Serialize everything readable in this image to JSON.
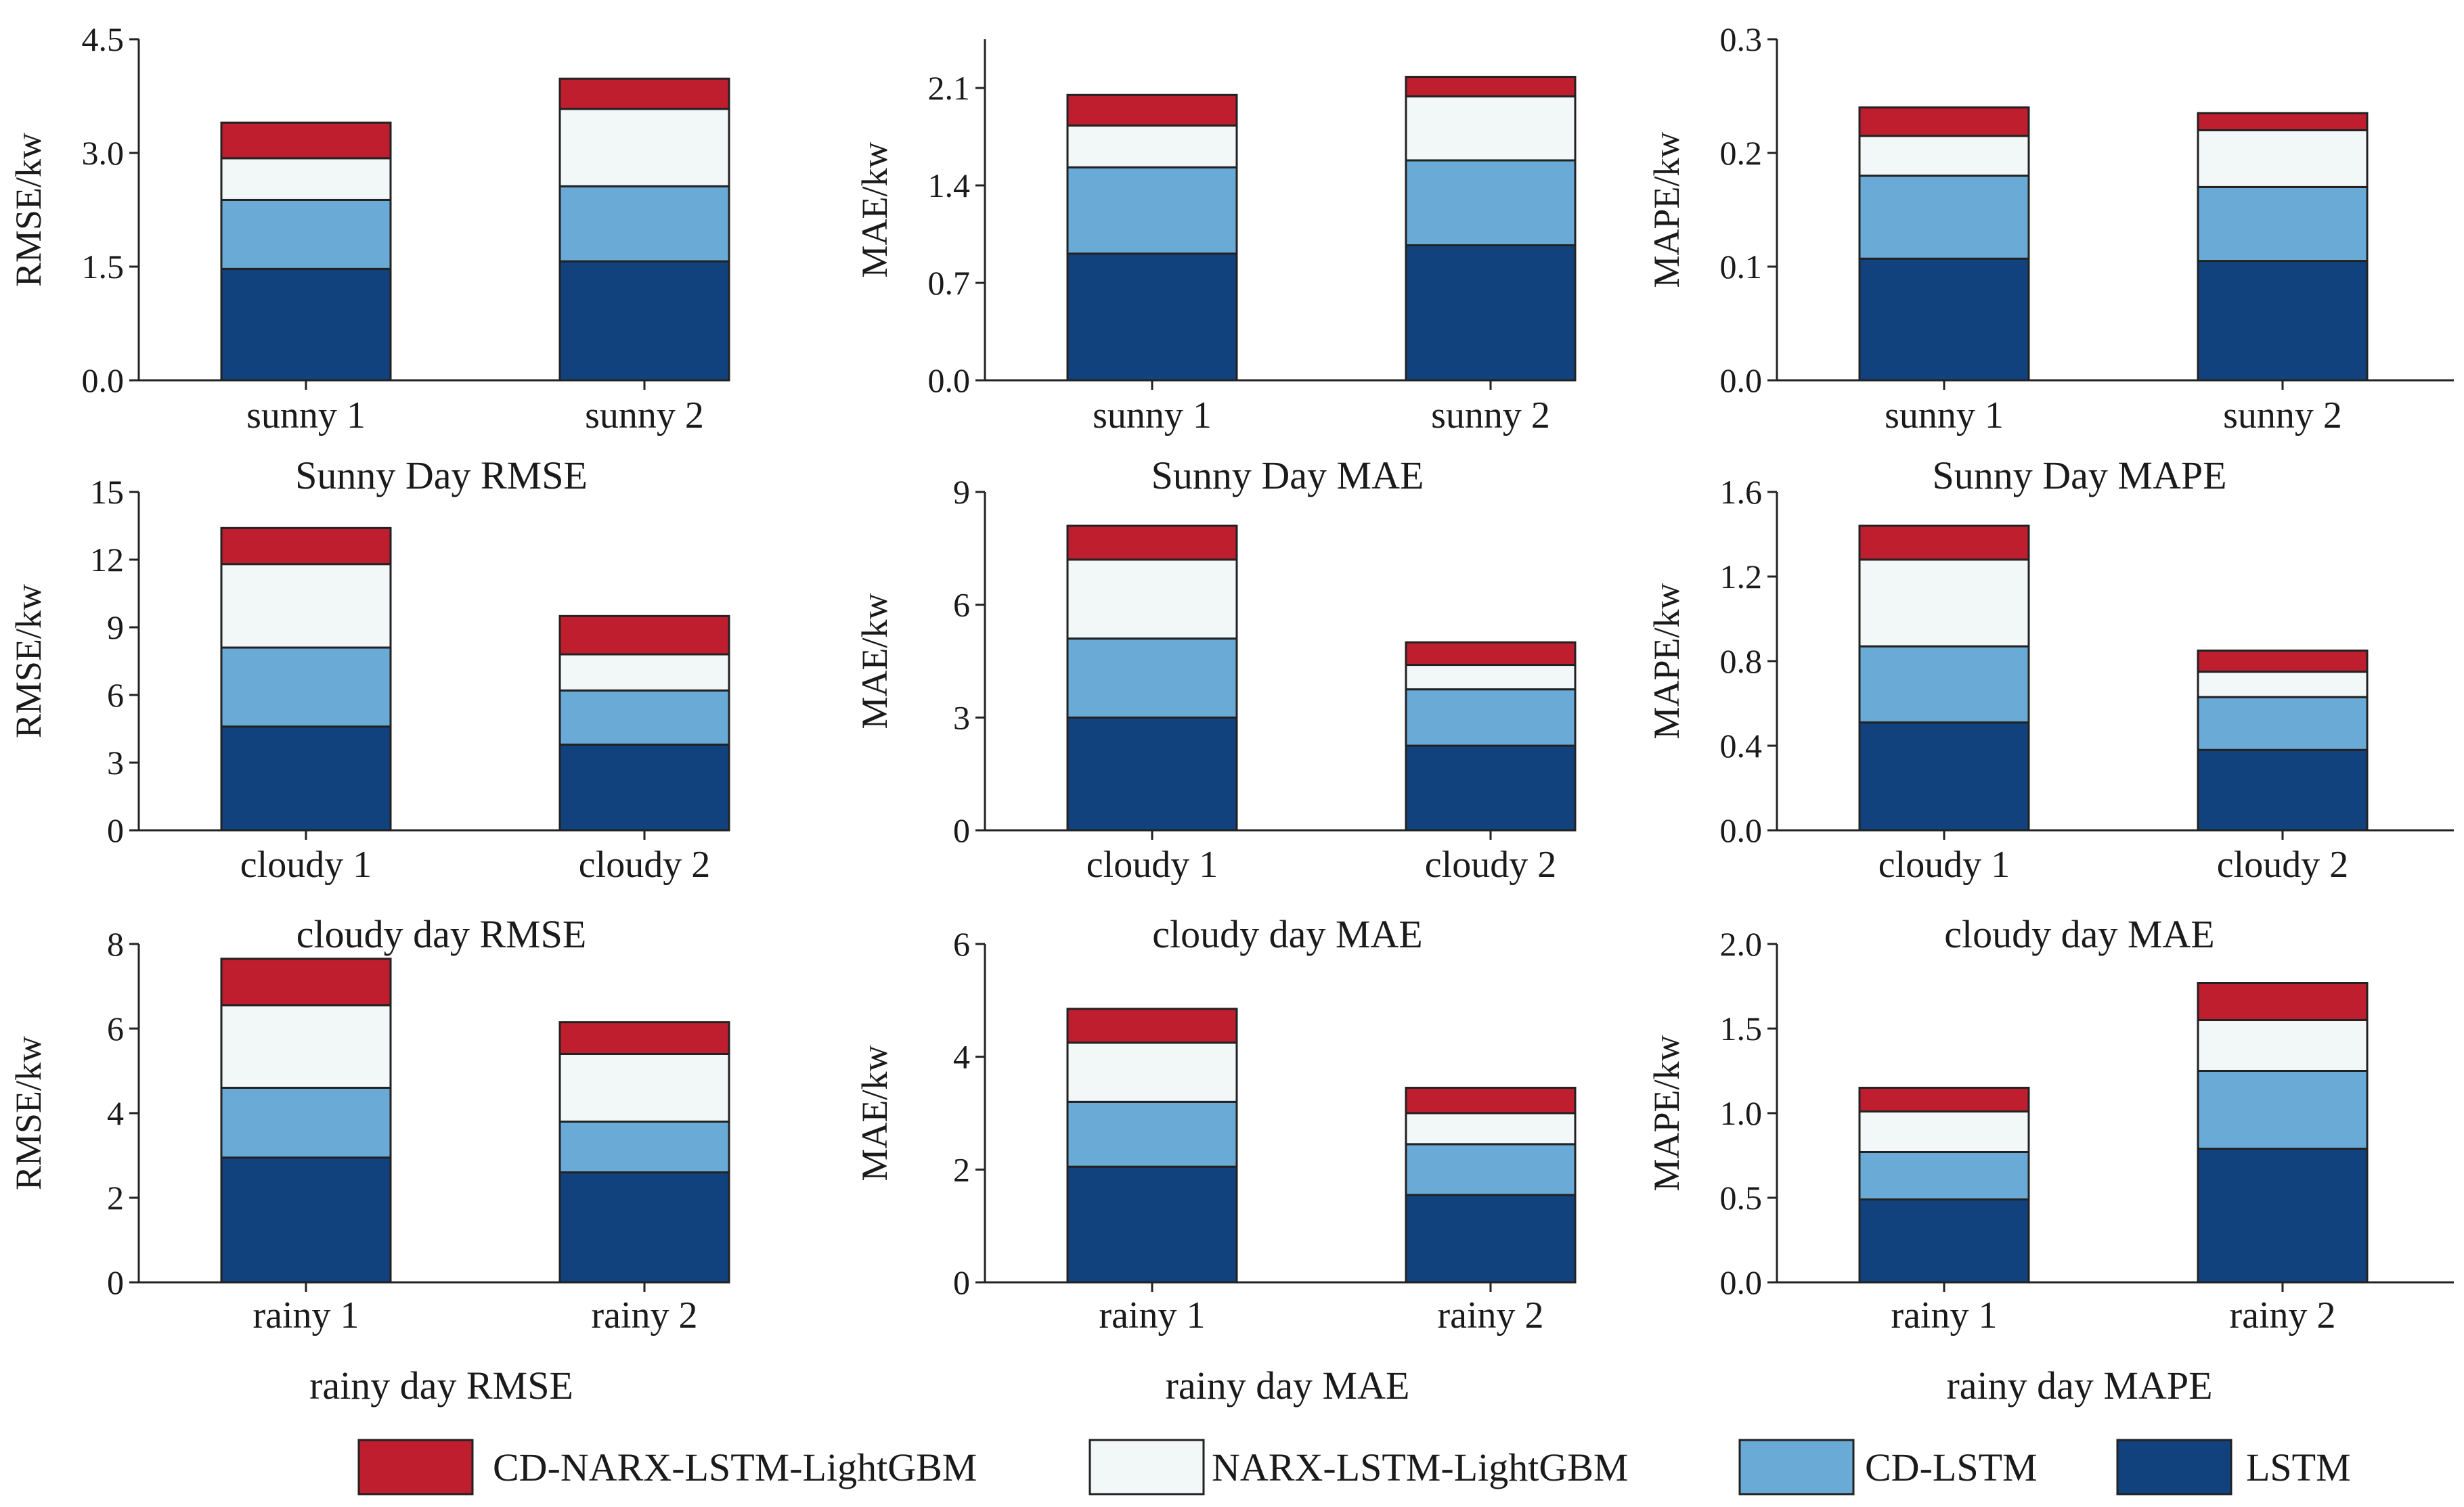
{
  "colors": {
    "CD-NARX-LSTM-LightGBM": "#bf1e2e",
    "NARX-LSTM-LightGBM": "#f2f7f7",
    "CD-LSTM": "#6aaad6",
    "LSTM": "#12427e"
  },
  "legend": [
    "CD-NARX-LSTM-LightGBM",
    "NARX-LSTM-LightGBM",
    "CD-LSTM",
    "LSTM"
  ],
  "chart_data": [
    {
      "type": "bar",
      "stacked": true,
      "title": "Sunny Day RMSE",
      "ylabel": "RMSE/kw",
      "ylim": [
        0,
        4.5
      ],
      "yticks": [
        "0.0",
        "1.5",
        "3.0",
        "4.5"
      ],
      "categories": [
        "sunny 1",
        "sunny 2"
      ],
      "series": [
        {
          "name": "LSTM",
          "values": [
            1.47,
            1.57
          ]
        },
        {
          "name": "CD-LSTM",
          "values": [
            0.91,
            0.99
          ]
        },
        {
          "name": "NARX-LSTM-LightGBM",
          "values": [
            0.55,
            1.02
          ]
        },
        {
          "name": "CD-NARX-LSTM-LightGBM",
          "values": [
            0.47,
            0.4
          ]
        }
      ]
    },
    {
      "type": "bar",
      "stacked": true,
      "title": "Sunny Day MAE",
      "ylabel": "MAE/kw",
      "ylim": [
        0,
        2.45
      ],
      "yticks": [
        "0.0",
        "0.7",
        "1.4",
        "2.1"
      ],
      "categories": [
        "sunny 1",
        "sunny 2"
      ],
      "series": [
        {
          "name": "LSTM",
          "values": [
            0.91,
            0.97
          ]
        },
        {
          "name": "CD-LSTM",
          "values": [
            0.62,
            0.61
          ]
        },
        {
          "name": "NARX-LSTM-LightGBM",
          "values": [
            0.3,
            0.46
          ]
        },
        {
          "name": "CD-NARX-LSTM-LightGBM",
          "values": [
            0.22,
            0.14
          ]
        }
      ]
    },
    {
      "type": "bar",
      "stacked": true,
      "title": "Sunny Day MAPE",
      "ylabel": "MAPE/kw",
      "ylim": [
        0,
        0.3
      ],
      "yticks": [
        "0.0",
        "0.1",
        "0.2",
        "0.3"
      ],
      "categories": [
        "sunny 1",
        "sunny 2"
      ],
      "series": [
        {
          "name": "LSTM",
          "values": [
            0.107,
            0.105
          ]
        },
        {
          "name": "CD-LSTM",
          "values": [
            0.073,
            0.065
          ]
        },
        {
          "name": "NARX-LSTM-LightGBM",
          "values": [
            0.035,
            0.05
          ]
        },
        {
          "name": "CD-NARX-LSTM-LightGBM",
          "values": [
            0.025,
            0.015
          ]
        }
      ]
    },
    {
      "type": "bar",
      "stacked": true,
      "title": "cloudy day RMSE",
      "ylabel": "RMSE/kw",
      "ylim": [
        0,
        15
      ],
      "yticks": [
        "0",
        "3",
        "6",
        "9",
        "12",
        "15"
      ],
      "categories": [
        "cloudy 1",
        "cloudy 2"
      ],
      "series": [
        {
          "name": "LSTM",
          "values": [
            4.6,
            3.8
          ]
        },
        {
          "name": "CD-LSTM",
          "values": [
            3.5,
            2.4
          ]
        },
        {
          "name": "NARX-LSTM-LightGBM",
          "values": [
            3.7,
            1.6
          ]
        },
        {
          "name": "CD-NARX-LSTM-LightGBM",
          "values": [
            1.6,
            1.7
          ]
        }
      ]
    },
    {
      "type": "bar",
      "stacked": true,
      "title": "cloudy day MAE",
      "ylabel": "MAE/kw",
      "ylim": [
        0,
        9
      ],
      "yticks": [
        "0",
        "3",
        "6",
        "9"
      ],
      "categories": [
        "cloudy 1",
        "cloudy 2"
      ],
      "series": [
        {
          "name": "LSTM",
          "values": [
            3.0,
            2.25
          ]
        },
        {
          "name": "CD-LSTM",
          "values": [
            2.1,
            1.5
          ]
        },
        {
          "name": "NARX-LSTM-LightGBM",
          "values": [
            2.1,
            0.65
          ]
        },
        {
          "name": "CD-NARX-LSTM-LightGBM",
          "values": [
            0.9,
            0.6
          ]
        }
      ]
    },
    {
      "type": "bar",
      "stacked": true,
      "title": "cloudy day MAE",
      "ylabel": "MAPE/kw",
      "ylim": [
        0,
        1.6
      ],
      "yticks": [
        "0.0",
        "0.4",
        "0.8",
        "1.2",
        "1.6"
      ],
      "categories": [
        "cloudy 1",
        "cloudy 2"
      ],
      "series": [
        {
          "name": "LSTM",
          "values": [
            0.51,
            0.38
          ]
        },
        {
          "name": "CD-LSTM",
          "values": [
            0.36,
            0.25
          ]
        },
        {
          "name": "NARX-LSTM-LightGBM",
          "values": [
            0.41,
            0.12
          ]
        },
        {
          "name": "CD-NARX-LSTM-LightGBM",
          "values": [
            0.16,
            0.1
          ]
        }
      ]
    },
    {
      "type": "bar",
      "stacked": true,
      "title": "rainy day RMSE",
      "ylabel": "RMSE/kw",
      "ylim": [
        0,
        8
      ],
      "yticks": [
        "0",
        "2",
        "4",
        "6",
        "8"
      ],
      "categories": [
        "rainy 1",
        "rainy 2"
      ],
      "series": [
        {
          "name": "LSTM",
          "values": [
            2.95,
            2.6
          ]
        },
        {
          "name": "CD-LSTM",
          "values": [
            1.65,
            1.2
          ]
        },
        {
          "name": "NARX-LSTM-LightGBM",
          "values": [
            1.95,
            1.6
          ]
        },
        {
          "name": "CD-NARX-LSTM-LightGBM",
          "values": [
            1.1,
            0.75
          ]
        }
      ]
    },
    {
      "type": "bar",
      "stacked": true,
      "title": "rainy day MAE",
      "ylabel": "MAE/kw",
      "ylim": [
        0,
        6
      ],
      "yticks": [
        "0",
        "2",
        "4",
        "6"
      ],
      "categories": [
        "rainy 1",
        "rainy 2"
      ],
      "series": [
        {
          "name": "LSTM",
          "values": [
            2.05,
            1.55
          ]
        },
        {
          "name": "CD-LSTM",
          "values": [
            1.15,
            0.9
          ]
        },
        {
          "name": "NARX-LSTM-LightGBM",
          "values": [
            1.05,
            0.55
          ]
        },
        {
          "name": "CD-NARX-LSTM-LightGBM",
          "values": [
            0.6,
            0.45
          ]
        }
      ]
    },
    {
      "type": "bar",
      "stacked": true,
      "title": "rainy day MAPE",
      "ylabel": "MAPE/kw",
      "ylim": [
        0,
        2.0
      ],
      "yticks": [
        "0.0",
        "0.5",
        "1.0",
        "1.5",
        "2.0"
      ],
      "categories": [
        "rainy 1",
        "rainy 2"
      ],
      "series": [
        {
          "name": "LSTM",
          "values": [
            0.49,
            0.79
          ]
        },
        {
          "name": "CD-LSTM",
          "values": [
            0.28,
            0.46
          ]
        },
        {
          "name": "NARX-LSTM-LightGBM",
          "values": [
            0.24,
            0.3
          ]
        },
        {
          "name": "CD-NARX-LSTM-LightGBM",
          "values": [
            0.14,
            0.22
          ]
        }
      ]
    }
  ]
}
